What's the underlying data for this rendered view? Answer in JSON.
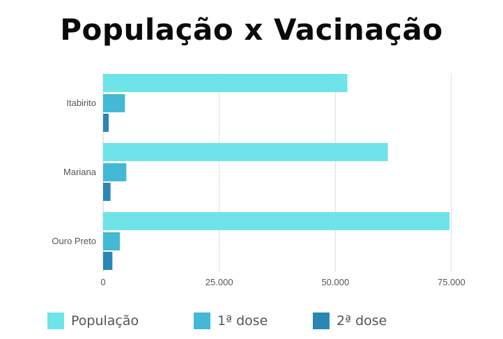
{
  "title": "População x Vacinação",
  "chart_data": {
    "type": "bar",
    "orientation": "horizontal",
    "title": "População x Vacinação",
    "categories": [
      "Itabirito",
      "Mariana",
      "Ouro Preto"
    ],
    "series": [
      {
        "name": "População",
        "color": "#6ee4e9",
        "values": [
          52600,
          61300,
          74600
        ]
      },
      {
        "name": "1ª dose",
        "color": "#44b9d6",
        "values": [
          4700,
          5000,
          3600
        ]
      },
      {
        "name": "2ª dose",
        "color": "#2a86b4",
        "values": [
          1200,
          1600,
          2000
        ]
      }
    ],
    "x_ticks": [
      "0",
      "25.000",
      "50.000",
      "75.000"
    ],
    "x_tick_values": [
      0,
      25000,
      50000,
      75000
    ],
    "xlim": [
      0,
      75000
    ],
    "grid": true,
    "legend_position": "bottom"
  }
}
